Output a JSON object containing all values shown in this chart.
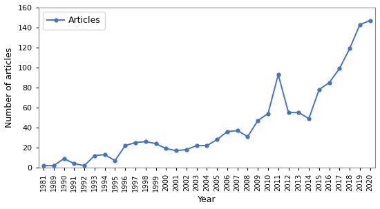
{
  "years": [
    "1981",
    "1989",
    "1990",
    "1991",
    "1992",
    "1993",
    "1994",
    "1995",
    "1996",
    "1997",
    "1998",
    "1999",
    "2000",
    "2001",
    "2002",
    "2003",
    "2004",
    "2005",
    "2006",
    "2007",
    "2008",
    "2009",
    "2010",
    "2011",
    "2012",
    "2013",
    "2014",
    "2015",
    "2016",
    "2017",
    "2018",
    "2019",
    "2020"
  ],
  "values": [
    2,
    2,
    9,
    4,
    2,
    12,
    13,
    7,
    22,
    25,
    26,
    24,
    19,
    17,
    18,
    22,
    22,
    28,
    36,
    37,
    31,
    47,
    54,
    93,
    55,
    55,
    49,
    78,
    85,
    99,
    119,
    143,
    147
  ],
  "line_color": "#4472C4",
  "marker": "o",
  "marker_size": 3.5,
  "legend_label": "Articles",
  "xlabel": "Year",
  "ylabel": "Number of articles",
  "ylim": [
    0,
    160
  ],
  "yticks": [
    0,
    20,
    40,
    60,
    80,
    100,
    120,
    140,
    160
  ],
  "bg_color": "#ffffff"
}
